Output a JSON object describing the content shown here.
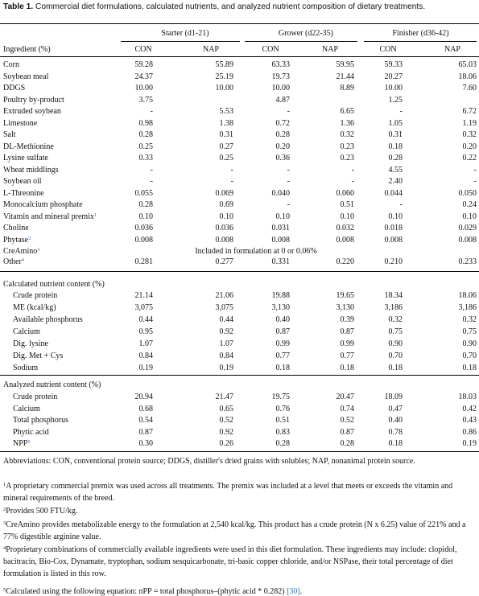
{
  "caption": {
    "label": "Table 1.",
    "text": " Commercial diet formulations, calculated nutrients, and analyzed nutrient composition of dietary treatments."
  },
  "header": {
    "phases": [
      "Starter (d1-21)",
      "Grower (d22-35)",
      "Finisher (d36-42)"
    ],
    "ingredient_label": "Ingredient (%)",
    "subcols": [
      "CON",
      "NAP",
      "CON",
      "NAP",
      "CON",
      "NAP"
    ]
  },
  "ingredients": [
    {
      "name": "Corn",
      "sup": "",
      "values": [
        "59.28",
        "55.89",
        "63.33",
        "59.95",
        "59.33",
        "65.03"
      ]
    },
    {
      "name": "Soybean meal",
      "sup": "",
      "values": [
        "24.37",
        "25.19",
        "19.73",
        "21.44",
        "20.27",
        "18.06"
      ]
    },
    {
      "name": "DDGS",
      "sup": "",
      "values": [
        "10.00",
        "10.00",
        "10.00",
        "8.89",
        "10.00",
        "7.60"
      ]
    },
    {
      "name": "Poultry by-product",
      "sup": "",
      "values": [
        "3.75",
        "",
        "4.87",
        "",
        "1.25",
        ""
      ]
    },
    {
      "name": "Extruded soybean",
      "sup": "",
      "values": [
        "-",
        "5.53",
        "-",
        "6.65",
        "-",
        "6.72"
      ]
    },
    {
      "name": "Limestone",
      "sup": "",
      "values": [
        "0.98",
        "1.38",
        "0.72",
        "1.36",
        "1.05",
        "1.19"
      ]
    },
    {
      "name": "Salt",
      "sup": "",
      "values": [
        "0.28",
        "0.31",
        "0.28",
        "0.32",
        "0.31",
        "0.32"
      ]
    },
    {
      "name": "DL-Methionine",
      "sup": "",
      "values": [
        "0.25",
        "0.27",
        "0.20",
        "0.23",
        "0.18",
        "0.20"
      ]
    },
    {
      "name": "Lysine sulfate",
      "sup": "",
      "values": [
        "0.33",
        "0.25",
        "0.36",
        "0.23",
        "0.28",
        "0.22"
      ]
    },
    {
      "name": "Wheat middlings",
      "sup": "",
      "values": [
        "-",
        "-",
        "-",
        "-",
        "4.55",
        "-"
      ]
    },
    {
      "name": "Soybean oil",
      "sup": "",
      "values": [
        "-",
        "-",
        "-",
        "-",
        "2.40",
        "-"
      ]
    },
    {
      "name": "L-Threonine",
      "sup": "",
      "values": [
        "0.055",
        "0.069",
        "0.040",
        "0.060",
        "0.044",
        "0.050"
      ]
    },
    {
      "name": "Monocalcium phosphate",
      "sup": "",
      "values": [
        "0.28",
        "0.69",
        "-",
        "0.51",
        "-",
        "0.24"
      ]
    },
    {
      "name": "Vitamin and mineral premix",
      "sup": "1",
      "values": [
        "0.10",
        "0.10",
        "0.10",
        "0.10",
        "0.10",
        "0.10"
      ]
    },
    {
      "name": "Choline",
      "sup": "",
      "values": [
        "0.036",
        "0.036",
        "0.031",
        "0.032",
        "0.018",
        "0.029"
      ]
    },
    {
      "name": "Phytase",
      "sup": "2",
      "values": [
        "0.008",
        "0.008",
        "0.008",
        "0.008",
        "0.008",
        "0.008"
      ]
    }
  ],
  "creamino": {
    "name": "CreAmino",
    "sup": "3",
    "text": "Included in formulation at 0 or 0.06%"
  },
  "other": {
    "name": "Other",
    "sup": "4",
    "values": [
      "0.281",
      "0.277",
      "0.331",
      "0.220",
      "0.210",
      "0.233"
    ]
  },
  "calculated": {
    "heading": "Calculated nutrient content (%)",
    "rows": [
      {
        "name": "Crude protein",
        "values": [
          "21.14",
          "21.06",
          "19.88",
          "19.65",
          "18.34",
          "18.06"
        ]
      },
      {
        "name": "ME (kcal/kg)",
        "values": [
          "3,075",
          "3,075",
          "3,130",
          "3,130",
          "3,186",
          "3,186"
        ]
      },
      {
        "name": "Available phosphorus",
        "values": [
          "0.44",
          "0.44",
          "0.40",
          "0.39",
          "0.32",
          "0.32"
        ]
      },
      {
        "name": "Calcium",
        "values": [
          "0.95",
          "0.92",
          "0.87",
          "0.87",
          "0.75",
          "0.75"
        ]
      },
      {
        "name": "Dig. lysine",
        "values": [
          "1.07",
          "1.07",
          "0.99",
          "0.99",
          "0.90",
          "0.90"
        ]
      },
      {
        "name": "Dig. Met + Cys",
        "values": [
          "0.84",
          "0.84",
          "0.77",
          "0.77",
          "0.70",
          "0.70"
        ]
      },
      {
        "name": "Sodium",
        "values": [
          "0.19",
          "0.19",
          "0.18",
          "0.18",
          "0.18",
          "0.18"
        ]
      }
    ]
  },
  "analyzed": {
    "heading": "Analyzed nutrient content (%)",
    "rows": [
      {
        "name": "Crude protein",
        "sup": "",
        "values": [
          "20.94",
          "21.47",
          "19.75",
          "20.47",
          "18.09",
          "18.03"
        ]
      },
      {
        "name": "Calcium",
        "sup": "",
        "values": [
          "0.68",
          "0.65",
          "0.76",
          "0.74",
          "0.47",
          "0.42"
        ]
      },
      {
        "name": "Total phosphorus",
        "sup": "",
        "values": [
          "0.54",
          "0.52",
          "0.51",
          "0.52",
          "0.40",
          "0.43"
        ]
      },
      {
        "name": "Phytic acid",
        "sup": "",
        "values": [
          "0.87",
          "0.92",
          "0.83",
          "0.87",
          "0.78",
          "0.86"
        ]
      },
      {
        "name": "NPP",
        "sup": "5",
        "values": [
          "0.30",
          "0.26",
          "0.28",
          "0.28",
          "0.18",
          "0.19"
        ]
      }
    ]
  },
  "footnotes": {
    "abbrev": "Abbreviations: CON, conventional protein source; DDGS, distiller's dried grains with solubles; NAP, nonanimal protein source.",
    "f1": "A proprietary commercial premix was used across all treatments. The premix was included at a level that meets or exceeds the vitamin and mineral requirements of the breed.",
    "f2": "Provides 500 FTU/kg.",
    "f3": "CreAmino provides metabolizable energy to the formulation at 2,540 kcal/kg. This product has a crude protein (N x 6.25) value of 221% and a 77% digestible arginine value.",
    "f4": "Proprietary combinations of commercially available ingredients were used in this diet formulation. These ingredients may include: clopidol, bacitracin, Bio-Cox, Dynamate, tryptophan, sodium sesquicarbonate, tri-basic copper chloride, and/or NSPase, their total percentage of diet formulation is listed in this row.",
    "f5": "Calculated using the following equation: nPP = total phosphorus–(phytic acid * 0.282) ",
    "f5_ref": "[30]",
    "f5_end": ".",
    "marks": [
      "1",
      "2",
      "3",
      "4",
      "5"
    ]
  }
}
